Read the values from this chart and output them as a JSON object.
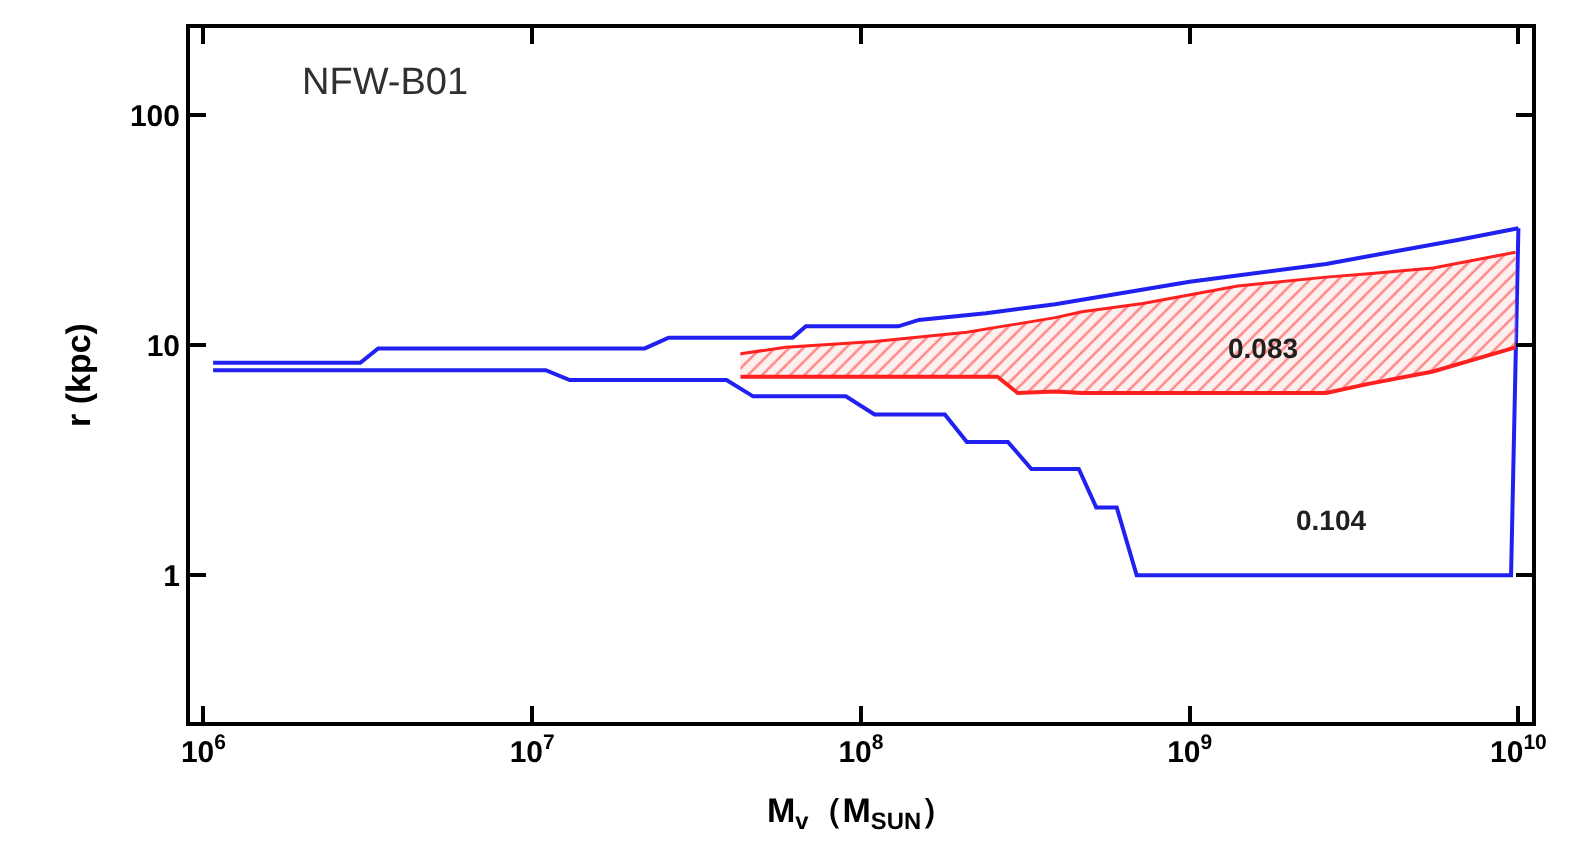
{
  "chart_data": {
    "type": "line",
    "xlabel": "M$_{v}$（M$_{SUN}$）",
    "ylabel": "r (kpc)",
    "log": "xy",
    "marker": "none",
    "line_style": "solid",
    "xlim": [
      910000.0,
      11000000000.0
    ],
    "ylim": [
      0.23,
      240
    ],
    "xticks": [
      {
        "value": 1000000.0,
        "label": "10$^{6}$"
      },
      {
        "value": 10000000.0,
        "label": "10$^{7}$"
      },
      {
        "value": 100000000.0,
        "label": "10$^{8}$"
      },
      {
        "value": 1000000000.0,
        "label": "10$^{9}$"
      },
      {
        "value": 10000000000.0,
        "label": "10$^{10}$"
      }
    ],
    "yticks": [
      1,
      10,
      100
    ],
    "annotations": [
      "NFW-B01",
      "0.083",
      "0.104"
    ],
    "series": [
      {
        "color": "#2020f0",
        "x": [
          1070000.0,
          3000000.0,
          3400000.0,
          22000000.0,
          26000000.0,
          62000000.0,
          68000000.0,
          130000000.0,
          150000000.0,
          240000000.0,
          390000000.0,
          1000000000.0,
          2600000000.0,
          6600000000.0,
          10000000000.0
        ],
        "values": [
          8.4,
          8.4,
          9.7,
          9.7,
          10.8,
          10.8,
          12.1,
          12.1,
          12.9,
          13.8,
          15.1,
          18.9,
          22.6,
          28.8,
          32.3
        ]
      },
      {
        "color": "#2020f0",
        "x": [
          1070000.0,
          11000000.0,
          13000000.0,
          39000000.0,
          47000000.0,
          90000000.0,
          110000000.0,
          180000000.0,
          210000000.0,
          280000000.0,
          330000000.0,
          460000000.0,
          520000000.0,
          600000000.0,
          690000000.0,
          9500000000.0,
          10000000000.0
        ],
        "values": [
          7.8,
          7.8,
          7.06,
          7.06,
          6.0,
          6.0,
          5.0,
          5.0,
          3.8,
          3.8,
          2.9,
          2.9,
          1.97,
          1.97,
          1.0,
          1.0,
          32.3
        ]
      },
      {
        "color": "#ff2020",
        "x": [
          43000000.0,
          59000000.0,
          110000000.0,
          210000000.0,
          260000000.0,
          300000000.0,
          390000000.0,
          470000000.0,
          720000000.0,
          1400000000.0,
          2600000000.0,
          3500000000.0,
          5500000000.0,
          9800000000.0
        ],
        "values": [
          7.3,
          7.3,
          7.3,
          7.3,
          7.3,
          6.2,
          6.3,
          6.2,
          6.2,
          6.2,
          6.2,
          6.8,
          7.7,
          9.8
        ]
      },
      {
        "type": "area",
        "color": "#ff2020",
        "x": [
          43000000.0,
          59000000.0,
          110000000.0,
          210000000.0,
          260000000.0,
          300000000.0,
          390000000.0,
          470000000.0,
          720000000.0,
          1400000000.0,
          2600000000.0,
          3500000000.0,
          5500000000.0,
          9800000000.0
        ],
        "values": [
          9.2,
          9.8,
          10.4,
          11.4,
          12.0,
          12.4,
          13.2,
          14.0,
          15.2,
          18.1,
          19.8,
          20.5,
          21.7,
          25.4
        ]
      }
    ]
  }
}
